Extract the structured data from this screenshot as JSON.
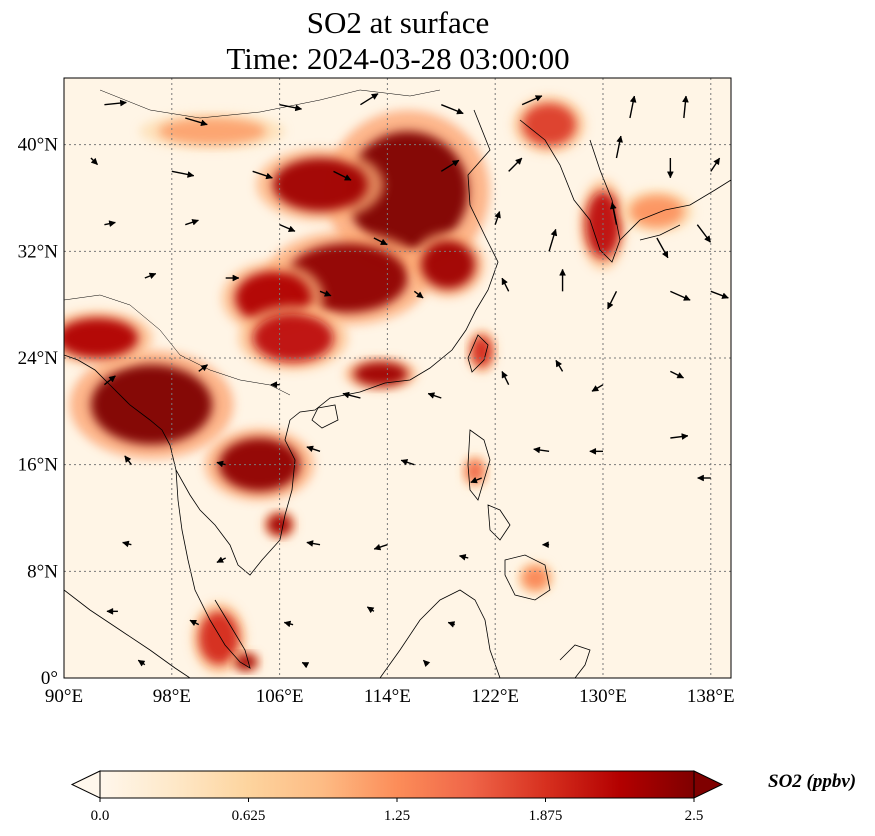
{
  "map": {
    "title_line1": "SO2 at surface",
    "title_line2": "Time: 2024-03-28 03:00:00",
    "lon_range": [
      90,
      139.5
    ],
    "lat_range": [
      0,
      45
    ],
    "lon_ticks": [
      {
        "value": 90,
        "label": "90°E"
      },
      {
        "value": 98,
        "label": "98°E"
      },
      {
        "value": 106,
        "label": "106°E"
      },
      {
        "value": 114,
        "label": "114°E"
      },
      {
        "value": 122,
        "label": "122°E"
      },
      {
        "value": 130,
        "label": "130°E"
      },
      {
        "value": 138,
        "label": "138°E"
      }
    ],
    "lat_ticks": [
      {
        "value": 0,
        "label": "0°"
      },
      {
        "value": 8,
        "label": "8°N"
      },
      {
        "value": 16,
        "label": "16°N"
      },
      {
        "value": 24,
        "label": "24°N"
      },
      {
        "value": 32,
        "label": "32°N"
      },
      {
        "value": 40,
        "label": "40°N"
      }
    ],
    "gridlines": true,
    "projection": "PlateCarree",
    "colormap": "OrRd",
    "colors": {
      "background": "#fff5e6",
      "low": "#fdd9a8",
      "mid": "#f4744a",
      "high": "#d7301f",
      "max": "#7f0000",
      "coast": "#000000",
      "grid": "#7a7a7a",
      "arrow": "#000000"
    }
  },
  "colorbar": {
    "label": "SO2 (ppbv)",
    "min": 0.0,
    "max": 2.5,
    "extend": "both",
    "ticks": [
      {
        "value": 0.0,
        "label": "0.0"
      },
      {
        "value": 0.625,
        "label": "0.625"
      },
      {
        "value": 1.25,
        "label": "1.25"
      },
      {
        "value": 1.875,
        "label": "1.875"
      },
      {
        "value": 2.5,
        "label": "2.5"
      }
    ],
    "stops": [
      "#fff7ec",
      "#fee8c8",
      "#fdd49e",
      "#fdbb84",
      "#fc8d59",
      "#ef6548",
      "#d7301f",
      "#b30000",
      "#7f0000"
    ]
  },
  "plumes": [
    {
      "name": "north-china-plain",
      "lon": 115.5,
      "lat": 36.5,
      "rx": 4.5,
      "ry": 4.5,
      "value": 2.5
    },
    {
      "name": "north-china-west",
      "lon": 109.0,
      "lat": 37.0,
      "rx": 3.5,
      "ry": 2.0,
      "value": 2.3
    },
    {
      "name": "central-china",
      "lon": 111.0,
      "lat": 30.0,
      "rx": 4.5,
      "ry": 2.6,
      "value": 2.4
    },
    {
      "name": "sichuan-basin",
      "lon": 105.5,
      "lat": 28.5,
      "rx": 2.8,
      "ry": 2.0,
      "value": 2.2
    },
    {
      "name": "southwest-china",
      "lon": 107.0,
      "lat": 25.5,
      "rx": 3.0,
      "ry": 1.8,
      "value": 2.1
    },
    {
      "name": "yangtze-delta",
      "lon": 118.5,
      "lat": 31.0,
      "rx": 2.0,
      "ry": 1.8,
      "value": 2.3
    },
    {
      "name": "pearl-river-delta",
      "lon": 113.5,
      "lat": 22.8,
      "rx": 2.0,
      "ry": 0.9,
      "value": 2.3
    },
    {
      "name": "northern-thailand",
      "lon": 96.5,
      "lat": 20.5,
      "rx": 4.5,
      "ry": 3.0,
      "value": 2.5
    },
    {
      "name": "northeast-india",
      "lon": 92.5,
      "lat": 25.5,
      "rx": 3.0,
      "ry": 1.5,
      "value": 2.2
    },
    {
      "name": "indochina",
      "lon": 104.5,
      "lat": 16.0,
      "rx": 3.0,
      "ry": 2.0,
      "value": 2.4
    },
    {
      "name": "southern-vietnam",
      "lon": 106.0,
      "lat": 11.5,
      "rx": 0.9,
      "ry": 0.8,
      "value": 2.3
    },
    {
      "name": "korea",
      "lon": 130.0,
      "lat": 34.0,
      "rx": 1.3,
      "ry": 2.5,
      "value": 2.1
    },
    {
      "name": "northeast-china",
      "lon": 126.0,
      "lat": 41.5,
      "rx": 2.0,
      "ry": 1.6,
      "value": 1.8
    },
    {
      "name": "taiwan",
      "lon": 121.0,
      "lat": 24.5,
      "rx": 0.8,
      "ry": 1.2,
      "value": 1.9
    },
    {
      "name": "luzon",
      "lon": 120.5,
      "lat": 15.5,
      "rx": 0.7,
      "ry": 0.9,
      "value": 1.5
    },
    {
      "name": "malay-peninsula",
      "lon": 101.5,
      "lat": 3.0,
      "rx": 1.5,
      "ry": 2.0,
      "value": 1.9
    },
    {
      "name": "singapore",
      "lon": 103.5,
      "lat": 1.2,
      "rx": 0.8,
      "ry": 0.6,
      "value": 2.3
    },
    {
      "name": "mindanao",
      "lon": 125.0,
      "lat": 7.5,
      "rx": 1.0,
      "ry": 0.9,
      "value": 1.3
    },
    {
      "name": "japan-west",
      "lon": 134.0,
      "lat": 35.0,
      "rx": 2.0,
      "ry": 1.2,
      "value": 1.2
    },
    {
      "name": "inner-mongolia",
      "lon": 101.0,
      "lat": 41.0,
      "rx": 4.0,
      "ry": 1.0,
      "value": 1.1
    }
  ],
  "wind_vectors": [
    {
      "lon": 93,
      "lat": 43,
      "u": 1.0,
      "v": 0.1
    },
    {
      "lon": 99,
      "lat": 42,
      "u": 1.0,
      "v": -0.3
    },
    {
      "lon": 106,
      "lat": 43,
      "u": 1.0,
      "v": -0.2
    },
    {
      "lon": 112,
      "lat": 43,
      "u": 0.8,
      "v": 0.5
    },
    {
      "lon": 118,
      "lat": 43,
      "u": 1.0,
      "v": -0.4
    },
    {
      "lon": 124,
      "lat": 43,
      "u": 0.9,
      "v": 0.4
    },
    {
      "lon": 132,
      "lat": 42,
      "u": 0.2,
      "v": 1.0
    },
    {
      "lon": 136,
      "lat": 42,
      "u": 0.1,
      "v": 1.0
    },
    {
      "lon": 92,
      "lat": 39,
      "u": 0.3,
      "v": -0.3
    },
    {
      "lon": 98,
      "lat": 38,
      "u": 1.0,
      "v": -0.2
    },
    {
      "lon": 104,
      "lat": 38,
      "u": 0.9,
      "v": -0.3
    },
    {
      "lon": 110,
      "lat": 38,
      "u": 0.8,
      "v": -0.4
    },
    {
      "lon": 118,
      "lat": 38,
      "u": 0.8,
      "v": 0.5
    },
    {
      "lon": 123,
      "lat": 38,
      "u": 0.6,
      "v": 0.6
    },
    {
      "lon": 131,
      "lat": 39,
      "u": 0.2,
      "v": 1.0
    },
    {
      "lon": 135,
      "lat": 39,
      "u": 0.0,
      "v": -0.9
    },
    {
      "lon": 138,
      "lat": 38,
      "u": 0.4,
      "v": 0.6
    },
    {
      "lon": 93,
      "lat": 34,
      "u": 0.5,
      "v": 0.1
    },
    {
      "lon": 99,
      "lat": 34,
      "u": 0.6,
      "v": 0.2
    },
    {
      "lon": 106,
      "lat": 34,
      "u": 0.7,
      "v": -0.3
    },
    {
      "lon": 113,
      "lat": 33,
      "u": 0.6,
      "v": -0.3
    },
    {
      "lon": 122,
      "lat": 34,
      "u": 0.2,
      "v": 0.6
    },
    {
      "lon": 126,
      "lat": 32,
      "u": 0.3,
      "v": 1.0
    },
    {
      "lon": 131,
      "lat": 34,
      "u": -0.2,
      "v": 1.0
    },
    {
      "lon": 134,
      "lat": 33,
      "u": 0.5,
      "v": -0.9
    },
    {
      "lon": 137,
      "lat": 34,
      "u": 0.6,
      "v": -0.8
    },
    {
      "lon": 96,
      "lat": 30,
      "u": 0.5,
      "v": 0.2
    },
    {
      "lon": 102,
      "lat": 30,
      "u": 0.6,
      "v": 0.0
    },
    {
      "lon": 109,
      "lat": 29,
      "u": 0.5,
      "v": -0.2
    },
    {
      "lon": 116,
      "lat": 29,
      "u": 0.4,
      "v": -0.3
    },
    {
      "lon": 123,
      "lat": 29,
      "u": -0.3,
      "v": 0.6
    },
    {
      "lon": 127,
      "lat": 29,
      "u": 0.0,
      "v": 1.0
    },
    {
      "lon": 131,
      "lat": 29,
      "u": -0.4,
      "v": -0.8
    },
    {
      "lon": 135,
      "lat": 29,
      "u": 0.9,
      "v": -0.4
    },
    {
      "lon": 138,
      "lat": 29,
      "u": 0.8,
      "v": -0.3
    },
    {
      "lon": 93,
      "lat": 22,
      "u": 0.5,
      "v": 0.4
    },
    {
      "lon": 100,
      "lat": 23,
      "u": 0.4,
      "v": 0.3
    },
    {
      "lon": 106,
      "lat": 22,
      "u": -0.4,
      "v": 0.0
    },
    {
      "lon": 112,
      "lat": 21,
      "u": -0.8,
      "v": 0.2
    },
    {
      "lon": 118,
      "lat": 21,
      "u": -0.6,
      "v": 0.2
    },
    {
      "lon": 123,
      "lat": 22,
      "u": -0.3,
      "v": 0.6
    },
    {
      "lon": 127,
      "lat": 23,
      "u": -0.3,
      "v": 0.5
    },
    {
      "lon": 130,
      "lat": 22,
      "u": -0.5,
      "v": -0.3
    },
    {
      "lon": 135,
      "lat": 23,
      "u": 0.6,
      "v": -0.3
    },
    {
      "lon": 95,
      "lat": 16,
      "u": -0.3,
      "v": 0.4
    },
    {
      "lon": 102,
      "lat": 16,
      "u": -0.4,
      "v": 0.1
    },
    {
      "lon": 109,
      "lat": 17,
      "u": -0.6,
      "v": 0.2
    },
    {
      "lon": 116,
      "lat": 16,
      "u": -0.6,
      "v": 0.2
    },
    {
      "lon": 121,
      "lat": 15,
      "u": -0.5,
      "v": -0.2
    },
    {
      "lon": 126,
      "lat": 17,
      "u": -0.7,
      "v": 0.1
    },
    {
      "lon": 130,
      "lat": 17,
      "u": -0.6,
      "v": 0.0
    },
    {
      "lon": 135,
      "lat": 18,
      "u": 0.8,
      "v": 0.1
    },
    {
      "lon": 138,
      "lat": 15,
      "u": -0.6,
      "v": 0.0
    },
    {
      "lon": 95,
      "lat": 10,
      "u": -0.4,
      "v": 0.1
    },
    {
      "lon": 102,
      "lat": 9,
      "u": -0.4,
      "v": -0.2
    },
    {
      "lon": 109,
      "lat": 10,
      "u": -0.6,
      "v": 0.1
    },
    {
      "lon": 114,
      "lat": 10,
      "u": -0.6,
      "v": -0.2
    },
    {
      "lon": 120,
      "lat": 9,
      "u": -0.4,
      "v": 0.1
    },
    {
      "lon": 126,
      "lat": 10,
      "u": -0.3,
      "v": 0.0
    },
    {
      "lon": 94,
      "lat": 5,
      "u": -0.5,
      "v": 0.0
    },
    {
      "lon": 100,
      "lat": 4,
      "u": -0.4,
      "v": 0.2
    },
    {
      "lon": 107,
      "lat": 4,
      "u": -0.4,
      "v": 0.1
    },
    {
      "lon": 113,
      "lat": 5,
      "u": -0.3,
      "v": 0.2
    },
    {
      "lon": 119,
      "lat": 4,
      "u": -0.3,
      "v": 0.1
    },
    {
      "lon": 96,
      "lat": 1,
      "u": -0.3,
      "v": 0.2
    },
    {
      "lon": 108,
      "lat": 1,
      "u": -0.2,
      "v": 0.1
    },
    {
      "lon": 117,
      "lat": 1,
      "u": -0.2,
      "v": 0.2
    }
  ]
}
